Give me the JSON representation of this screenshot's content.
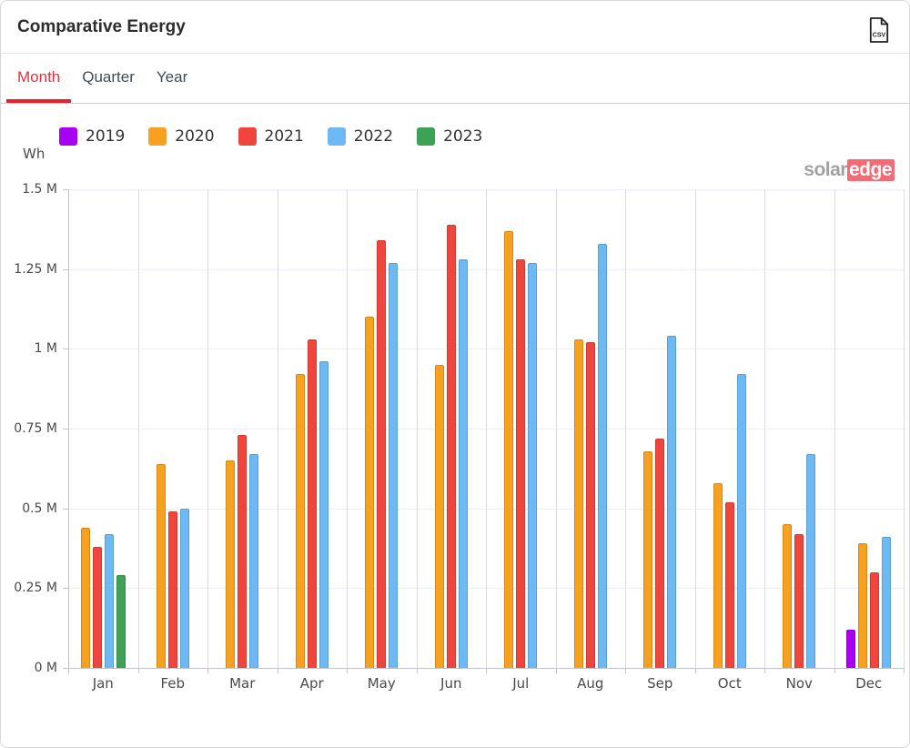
{
  "header": {
    "title": "Comparative Energy",
    "csv_label": "CSV"
  },
  "tabs": [
    {
      "label": "Month",
      "active": true
    },
    {
      "label": "Quarter",
      "active": false
    },
    {
      "label": "Year",
      "active": false
    }
  ],
  "watermark": {
    "part1": "solar",
    "part2": "edge"
  },
  "chart_data": {
    "type": "bar",
    "title": "Comparative Energy",
    "unit": "Wh",
    "xlabel": "",
    "ylabel": "Wh",
    "ylim": [
      0,
      1.5
    ],
    "grid": true,
    "legend_position": "top",
    "value_scale_note": "values in millions of Wh (M)",
    "categories": [
      "Jan",
      "Feb",
      "Mar",
      "Apr",
      "May",
      "Jun",
      "Jul",
      "Aug",
      "Sep",
      "Oct",
      "Nov",
      "Dec"
    ],
    "y_ticks": [
      {
        "value": 0,
        "label": "0 M"
      },
      {
        "value": 0.25,
        "label": "0.25 M"
      },
      {
        "value": 0.5,
        "label": "0.5 M"
      },
      {
        "value": 0.75,
        "label": "0.75 M"
      },
      {
        "value": 1,
        "label": "1 M"
      },
      {
        "value": 1.25,
        "label": "1.25 M"
      },
      {
        "value": 1.5,
        "label": "1.5 M"
      }
    ],
    "series": [
      {
        "name": "2019",
        "color": "#A800F0",
        "values": [
          null,
          null,
          null,
          null,
          null,
          null,
          null,
          null,
          null,
          null,
          null,
          0.12
        ]
      },
      {
        "name": "2020",
        "color": "#F8A01F",
        "values": [
          0.44,
          0.64,
          0.65,
          0.92,
          1.1,
          0.95,
          1.37,
          1.03,
          0.68,
          0.58,
          0.45,
          0.39
        ]
      },
      {
        "name": "2021",
        "color": "#F0453C",
        "values": [
          0.38,
          0.49,
          0.73,
          1.03,
          1.34,
          1.39,
          1.28,
          1.02,
          0.72,
          0.52,
          0.42,
          0.3
        ]
      },
      {
        "name": "2022",
        "color": "#6CB9F3",
        "values": [
          0.42,
          0.5,
          0.67,
          0.96,
          1.27,
          1.28,
          1.27,
          1.33,
          1.04,
          0.92,
          0.67,
          0.41
        ]
      },
      {
        "name": "2023",
        "color": "#3EA256",
        "values": [
          0.29,
          null,
          null,
          null,
          null,
          null,
          null,
          null,
          null,
          null,
          null,
          null
        ]
      }
    ]
  }
}
